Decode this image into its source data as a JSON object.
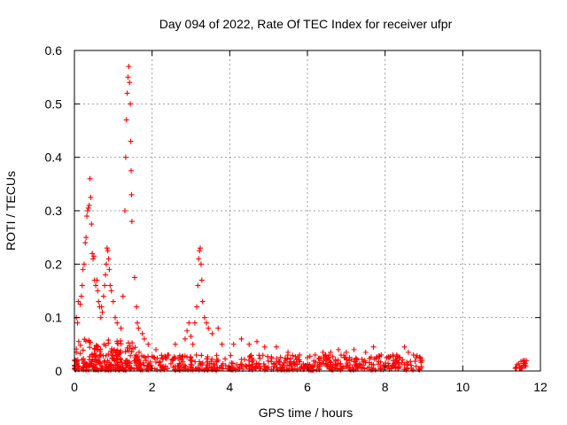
{
  "chart_data": {
    "type": "scatter",
    "title": "Day 094 of 2022, Rate Of TEC Index for receiver ufpr",
    "xlabel": "GPS time / hours",
    "ylabel": "ROTI / TECUs",
    "xlim": [
      0,
      12
    ],
    "ylim": [
      0,
      0.6
    ],
    "x_ticks": [
      0,
      2,
      4,
      6,
      8,
      10,
      12
    ],
    "x_tick_labels": [
      "0",
      "2",
      "4",
      "6",
      "8",
      "10",
      "12"
    ],
    "y_ticks": [
      0,
      0.1,
      0.2,
      0.3,
      0.4,
      0.5,
      0.6
    ],
    "y_tick_labels": [
      "0",
      "0.1",
      "0.2",
      "0.3",
      "0.4",
      "0.5",
      "0.6"
    ],
    "grid": true,
    "marker": "+",
    "color": "#ff0000",
    "series": [
      {
        "name": "ROTI",
        "points": [
          [
            0.05,
            0.1
          ],
          [
            0.08,
            0.09
          ],
          [
            0.1,
            0.13
          ],
          [
            0.15,
            0.125
          ],
          [
            0.18,
            0.14
          ],
          [
            0.2,
            0.16
          ],
          [
            0.22,
            0.19
          ],
          [
            0.25,
            0.2
          ],
          [
            0.28,
            0.24
          ],
          [
            0.3,
            0.25
          ],
          [
            0.32,
            0.29
          ],
          [
            0.34,
            0.3
          ],
          [
            0.36,
            0.305
          ],
          [
            0.38,
            0.31
          ],
          [
            0.4,
            0.36
          ],
          [
            0.42,
            0.325
          ],
          [
            0.44,
            0.275
          ],
          [
            0.46,
            0.22
          ],
          [
            0.48,
            0.21
          ],
          [
            0.5,
            0.215
          ],
          [
            0.52,
            0.17
          ],
          [
            0.55,
            0.16
          ],
          [
            0.58,
            0.17
          ],
          [
            0.6,
            0.15
          ],
          [
            0.62,
            0.13
          ],
          [
            0.65,
            0.12
          ],
          [
            0.68,
            0.1
          ],
          [
            0.7,
            0.12
          ],
          [
            0.72,
            0.11
          ],
          [
            0.75,
            0.14
          ],
          [
            0.78,
            0.16
          ],
          [
            0.8,
            0.18
          ],
          [
            0.82,
            0.2
          ],
          [
            0.84,
            0.23
          ],
          [
            0.86,
            0.225
          ],
          [
            0.88,
            0.21
          ],
          [
            0.9,
            0.19
          ],
          [
            0.92,
            0.16
          ],
          [
            0.95,
            0.15
          ],
          [
            1.0,
            0.13
          ],
          [
            1.05,
            0.1
          ],
          [
            1.1,
            0.09
          ],
          [
            1.2,
            0.08
          ],
          [
            1.25,
            0.14
          ],
          [
            1.3,
            0.3
          ],
          [
            1.32,
            0.4
          ],
          [
            1.34,
            0.47
          ],
          [
            1.36,
            0.52
          ],
          [
            1.38,
            0.55
          ],
          [
            1.4,
            0.57
          ],
          [
            1.42,
            0.54
          ],
          [
            1.44,
            0.5
          ],
          [
            1.45,
            0.43
          ],
          [
            1.46,
            0.375
          ],
          [
            1.47,
            0.33
          ],
          [
            1.48,
            0.28
          ],
          [
            1.55,
            0.175
          ],
          [
            1.6,
            0.12
          ],
          [
            1.62,
            0.09
          ],
          [
            1.65,
            0.08
          ],
          [
            1.75,
            0.07
          ],
          [
            1.8,
            0.06
          ],
          [
            1.9,
            0.05
          ],
          [
            2.1,
            0.04
          ],
          [
            2.4,
            0.03
          ],
          [
            2.6,
            0.05
          ],
          [
            2.85,
            0.06
          ],
          [
            2.9,
            0.075
          ],
          [
            2.95,
            0.09
          ],
          [
            3.0,
            0.065
          ],
          [
            3.05,
            0.05
          ],
          [
            3.1,
            0.09
          ],
          [
            3.15,
            0.12
          ],
          [
            3.18,
            0.16
          ],
          [
            3.2,
            0.21
          ],
          [
            3.22,
            0.225
          ],
          [
            3.24,
            0.23
          ],
          [
            3.26,
            0.2
          ],
          [
            3.28,
            0.17
          ],
          [
            3.3,
            0.13
          ],
          [
            3.35,
            0.1
          ],
          [
            3.4,
            0.09
          ],
          [
            3.45,
            0.08
          ],
          [
            3.55,
            0.07
          ],
          [
            3.7,
            0.08
          ],
          [
            3.8,
            0.05
          ],
          [
            4.1,
            0.05
          ],
          [
            4.3,
            0.06
          ],
          [
            4.5,
            0.05
          ],
          [
            4.7,
            0.055
          ],
          [
            4.9,
            0.045
          ],
          [
            5.2,
            0.045
          ],
          [
            5.5,
            0.035
          ],
          [
            5.8,
            0.03
          ],
          [
            6.0,
            0.025
          ],
          [
            6.2,
            0.03
          ],
          [
            6.4,
            0.035
          ],
          [
            6.6,
            0.035
          ],
          [
            6.8,
            0.04
          ],
          [
            7.0,
            0.035
          ],
          [
            7.2,
            0.04
          ],
          [
            7.5,
            0.035
          ],
          [
            7.7,
            0.045
          ],
          [
            7.9,
            0.03
          ],
          [
            8.1,
            0.025
          ],
          [
            8.3,
            0.03
          ],
          [
            8.5,
            0.045
          ],
          [
            8.6,
            0.035
          ],
          [
            8.8,
            0.025
          ],
          [
            8.95,
            0.02
          ],
          [
            11.4,
            0.012
          ],
          [
            11.5,
            0.018
          ],
          [
            11.6,
            0.01
          ]
        ],
        "baseline_segments": [
          {
            "x_start": 0.0,
            "x_end": 8.95,
            "y_min": 0.002,
            "y_max": 0.03
          },
          {
            "x_start": 0.0,
            "x_end": 1.7,
            "y_min": 0.002,
            "y_max": 0.06
          },
          {
            "x_start": 11.35,
            "x_end": 11.65,
            "y_min": 0.005,
            "y_max": 0.02
          }
        ]
      }
    ]
  }
}
